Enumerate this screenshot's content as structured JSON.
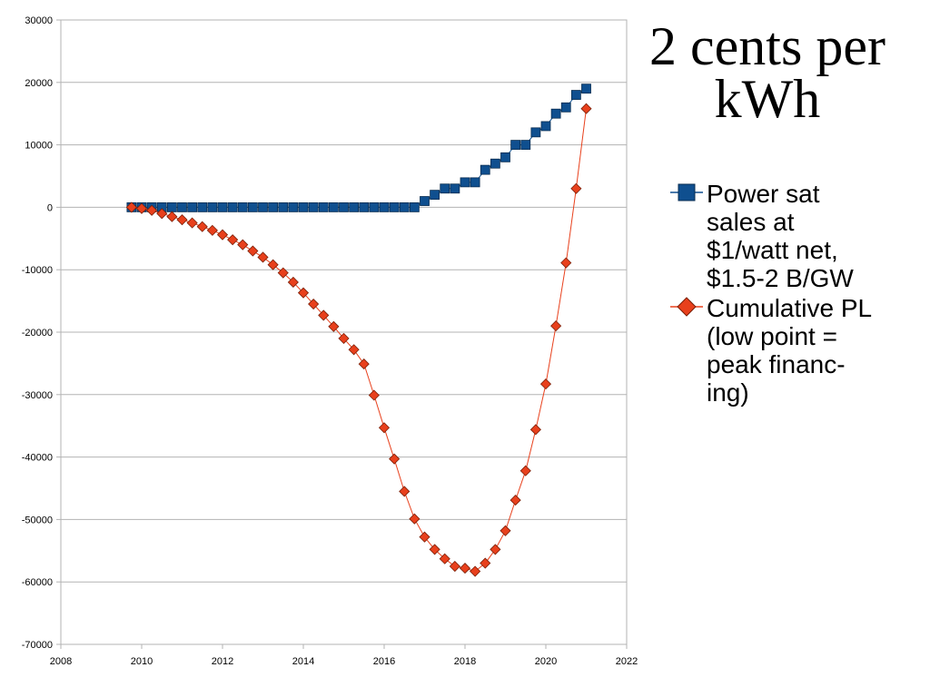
{
  "chart_data": {
    "type": "line",
    "title": "2 cents per kWh",
    "xlim": [
      2008,
      2022
    ],
    "ylim": [
      -70000,
      30000
    ],
    "x_ticks": [
      2008,
      2010,
      2012,
      2014,
      2016,
      2018,
      2020,
      2022
    ],
    "y_ticks": [
      30000,
      20000,
      10000,
      0,
      -10000,
      -20000,
      -30000,
      -40000,
      -50000,
      -60000,
      -70000
    ],
    "grid": "horizontal",
    "legend_position": "right",
    "series": [
      {
        "name": "Power sat sales at $1/watt net, $1.5-2 B/GW",
        "color": "#0f4f8f",
        "marker": "square",
        "x": [
          2009.75,
          2010.0,
          2010.25,
          2010.5,
          2010.75,
          2011.0,
          2011.25,
          2011.5,
          2011.75,
          2012.0,
          2012.25,
          2012.5,
          2012.75,
          2013.0,
          2013.25,
          2013.5,
          2013.75,
          2014.0,
          2014.25,
          2014.5,
          2014.75,
          2015.0,
          2015.25,
          2015.5,
          2015.75,
          2016.0,
          2016.25,
          2016.5,
          2016.75,
          2017.0,
          2017.25,
          2017.5,
          2017.75,
          2018.0,
          2018.25,
          2018.5,
          2018.75,
          2019.0,
          2019.25,
          2019.5,
          2019.75,
          2020.0,
          2020.25,
          2020.5,
          2020.75,
          2021.0
        ],
        "y": [
          0,
          0,
          0,
          0,
          0,
          0,
          0,
          0,
          0,
          0,
          0,
          0,
          0,
          0,
          0,
          0,
          0,
          0,
          0,
          0,
          0,
          0,
          0,
          0,
          0,
          0,
          0,
          0,
          0,
          1000,
          2000,
          3000,
          3000,
          4000,
          4000,
          6000,
          7000,
          8000,
          10000,
          10000,
          12000,
          13000,
          15000,
          16000,
          18000,
          19000
        ]
      },
      {
        "name": "Cumulative PL (low point = peak financing)",
        "color": "#e8401c",
        "marker": "diamond",
        "x": [
          2009.75,
          2010.0,
          2010.25,
          2010.5,
          2010.75,
          2011.0,
          2011.25,
          2011.5,
          2011.75,
          2012.0,
          2012.25,
          2012.5,
          2012.75,
          2013.0,
          2013.25,
          2013.5,
          2013.75,
          2014.0,
          2014.25,
          2014.5,
          2014.75,
          2015.0,
          2015.25,
          2015.5,
          2015.75,
          2016.0,
          2016.25,
          2016.5,
          2016.75,
          2017.0,
          2017.25,
          2017.5,
          2017.75,
          2018.0,
          2018.25,
          2018.5,
          2018.75,
          2019.0,
          2019.25,
          2019.5,
          2019.75,
          2020.0,
          2020.25,
          2020.5,
          2020.75,
          2021.0
        ],
        "y": [
          0,
          -200,
          -500,
          -1000,
          -1500,
          -2000,
          -2500,
          -3100,
          -3700,
          -4400,
          -5200,
          -6000,
          -7000,
          -8000,
          -9200,
          -10500,
          -12000,
          -13700,
          -15500,
          -17300,
          -19100,
          -21000,
          -22800,
          -25100,
          -30100,
          -35300,
          -40300,
          -45500,
          -49900,
          -52800,
          -54800,
          -56300,
          -57500,
          -57800,
          -58300,
          -57000,
          -54800,
          -51800,
          -46900,
          -42200,
          -35600,
          -28300,
          -19000,
          -8900,
          3000,
          15800
        ]
      }
    ]
  },
  "legend": {
    "items": [
      {
        "label": "Power sat\nsales at\n$1/watt net,\n$1.5-2 B/GW"
      },
      {
        "label": "Cumulative PL\n(low point =\npeak financ-\ning)"
      }
    ]
  }
}
